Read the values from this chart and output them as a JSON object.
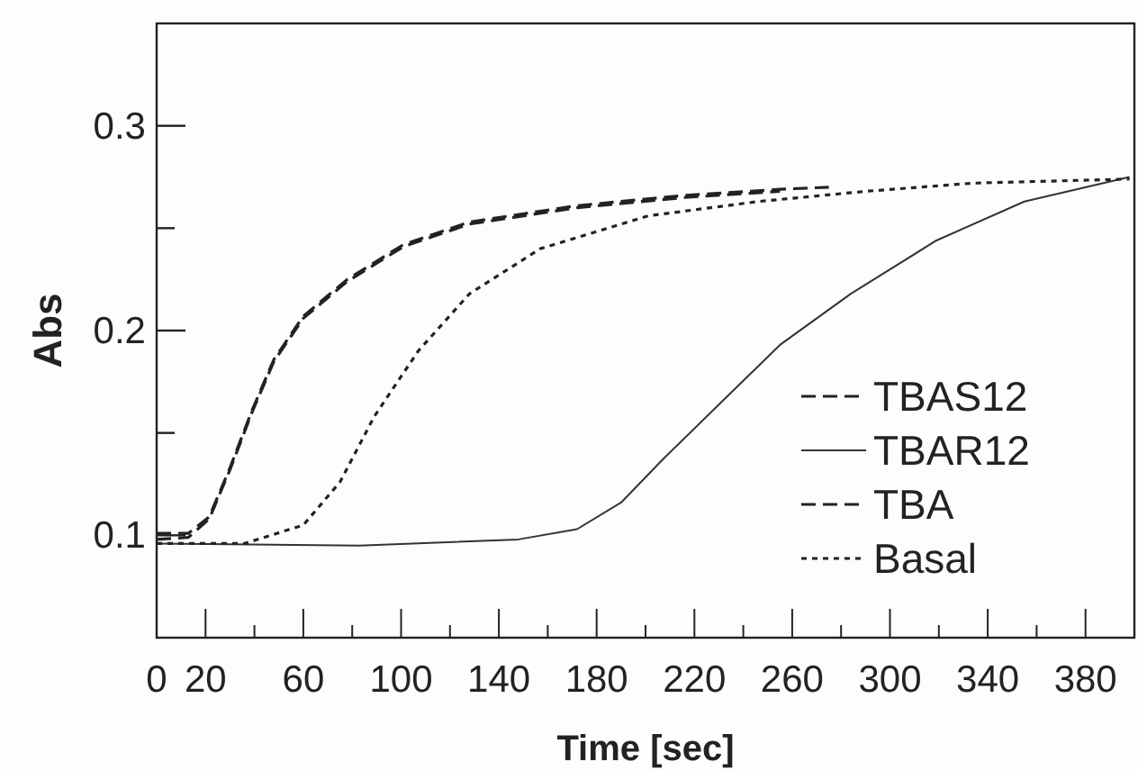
{
  "chart_data": {
    "type": "line",
    "xlabel": "Time [sec]",
    "ylabel": "Abs",
    "xlim": [
      0,
      400
    ],
    "ylim": [
      0.05,
      0.35
    ],
    "xticks": [
      0,
      20,
      {
        "value": 40,
        "label": null
      },
      60,
      {
        "value": 80,
        "label": null
      },
      100,
      {
        "value": 120,
        "label": null
      },
      140,
      {
        "value": 160,
        "label": null
      },
      180,
      {
        "value": 200,
        "label": null
      },
      220,
      {
        "value": 240,
        "label": null
      },
      260,
      {
        "value": 280,
        "label": null
      },
      300,
      {
        "value": 320,
        "label": null
      },
      340,
      {
        "value": 360,
        "label": null
      },
      380
    ],
    "yticks": [
      0.1,
      {
        "value": 0.15,
        "label": null
      },
      0.2,
      {
        "value": 0.25,
        "label": null
      },
      0.3
    ],
    "grid": false,
    "legend": "right",
    "marker": "none",
    "series": [
      {
        "name": "TBAS12",
        "color": "#222222",
        "line_style": "dashed",
        "x": [
          0,
          13,
          21.5,
          30,
          39,
          48,
          60,
          78,
          101,
          128,
          172,
          216,
          255,
          275
        ],
        "values": [
          0.101,
          0.101,
          0.109,
          0.133,
          0.161,
          0.186,
          0.207,
          0.225,
          0.242,
          0.253,
          0.261,
          0.266,
          0.269,
          0.27
        ]
      },
      {
        "name": "TBAR12",
        "color": "#333333",
        "line_style": "solid",
        "x": [
          0,
          83,
          148,
          172,
          190,
          207,
          231,
          255,
          284,
          319,
          355,
          398
        ],
        "values": [
          0.096,
          0.095,
          0.098,
          0.103,
          0.116,
          0.137,
          0.165,
          0.193,
          0.218,
          0.244,
          0.263,
          0.275
        ]
      },
      {
        "name": "TBA",
        "color": "#222222",
        "line_style": "dashed",
        "x": [
          0,
          13,
          21.5,
          30,
          39,
          48,
          60,
          78,
          101,
          128,
          172,
          216,
          255
        ],
        "values": [
          0.098,
          0.099,
          0.108,
          0.132,
          0.16,
          0.185,
          0.206,
          0.224,
          0.241,
          0.252,
          0.26,
          0.265,
          0.268
        ]
      },
      {
        "name": "Basal",
        "color": "#222222",
        "line_style": "dotted",
        "x": [
          0,
          36,
          60,
          75,
          89,
          107,
          128,
          157,
          201,
          246,
          290,
          334,
          398
        ],
        "values": [
          0.096,
          0.096,
          0.105,
          0.126,
          0.158,
          0.19,
          0.218,
          0.24,
          0.256,
          0.263,
          0.268,
          0.272,
          0.274
        ]
      }
    ]
  }
}
